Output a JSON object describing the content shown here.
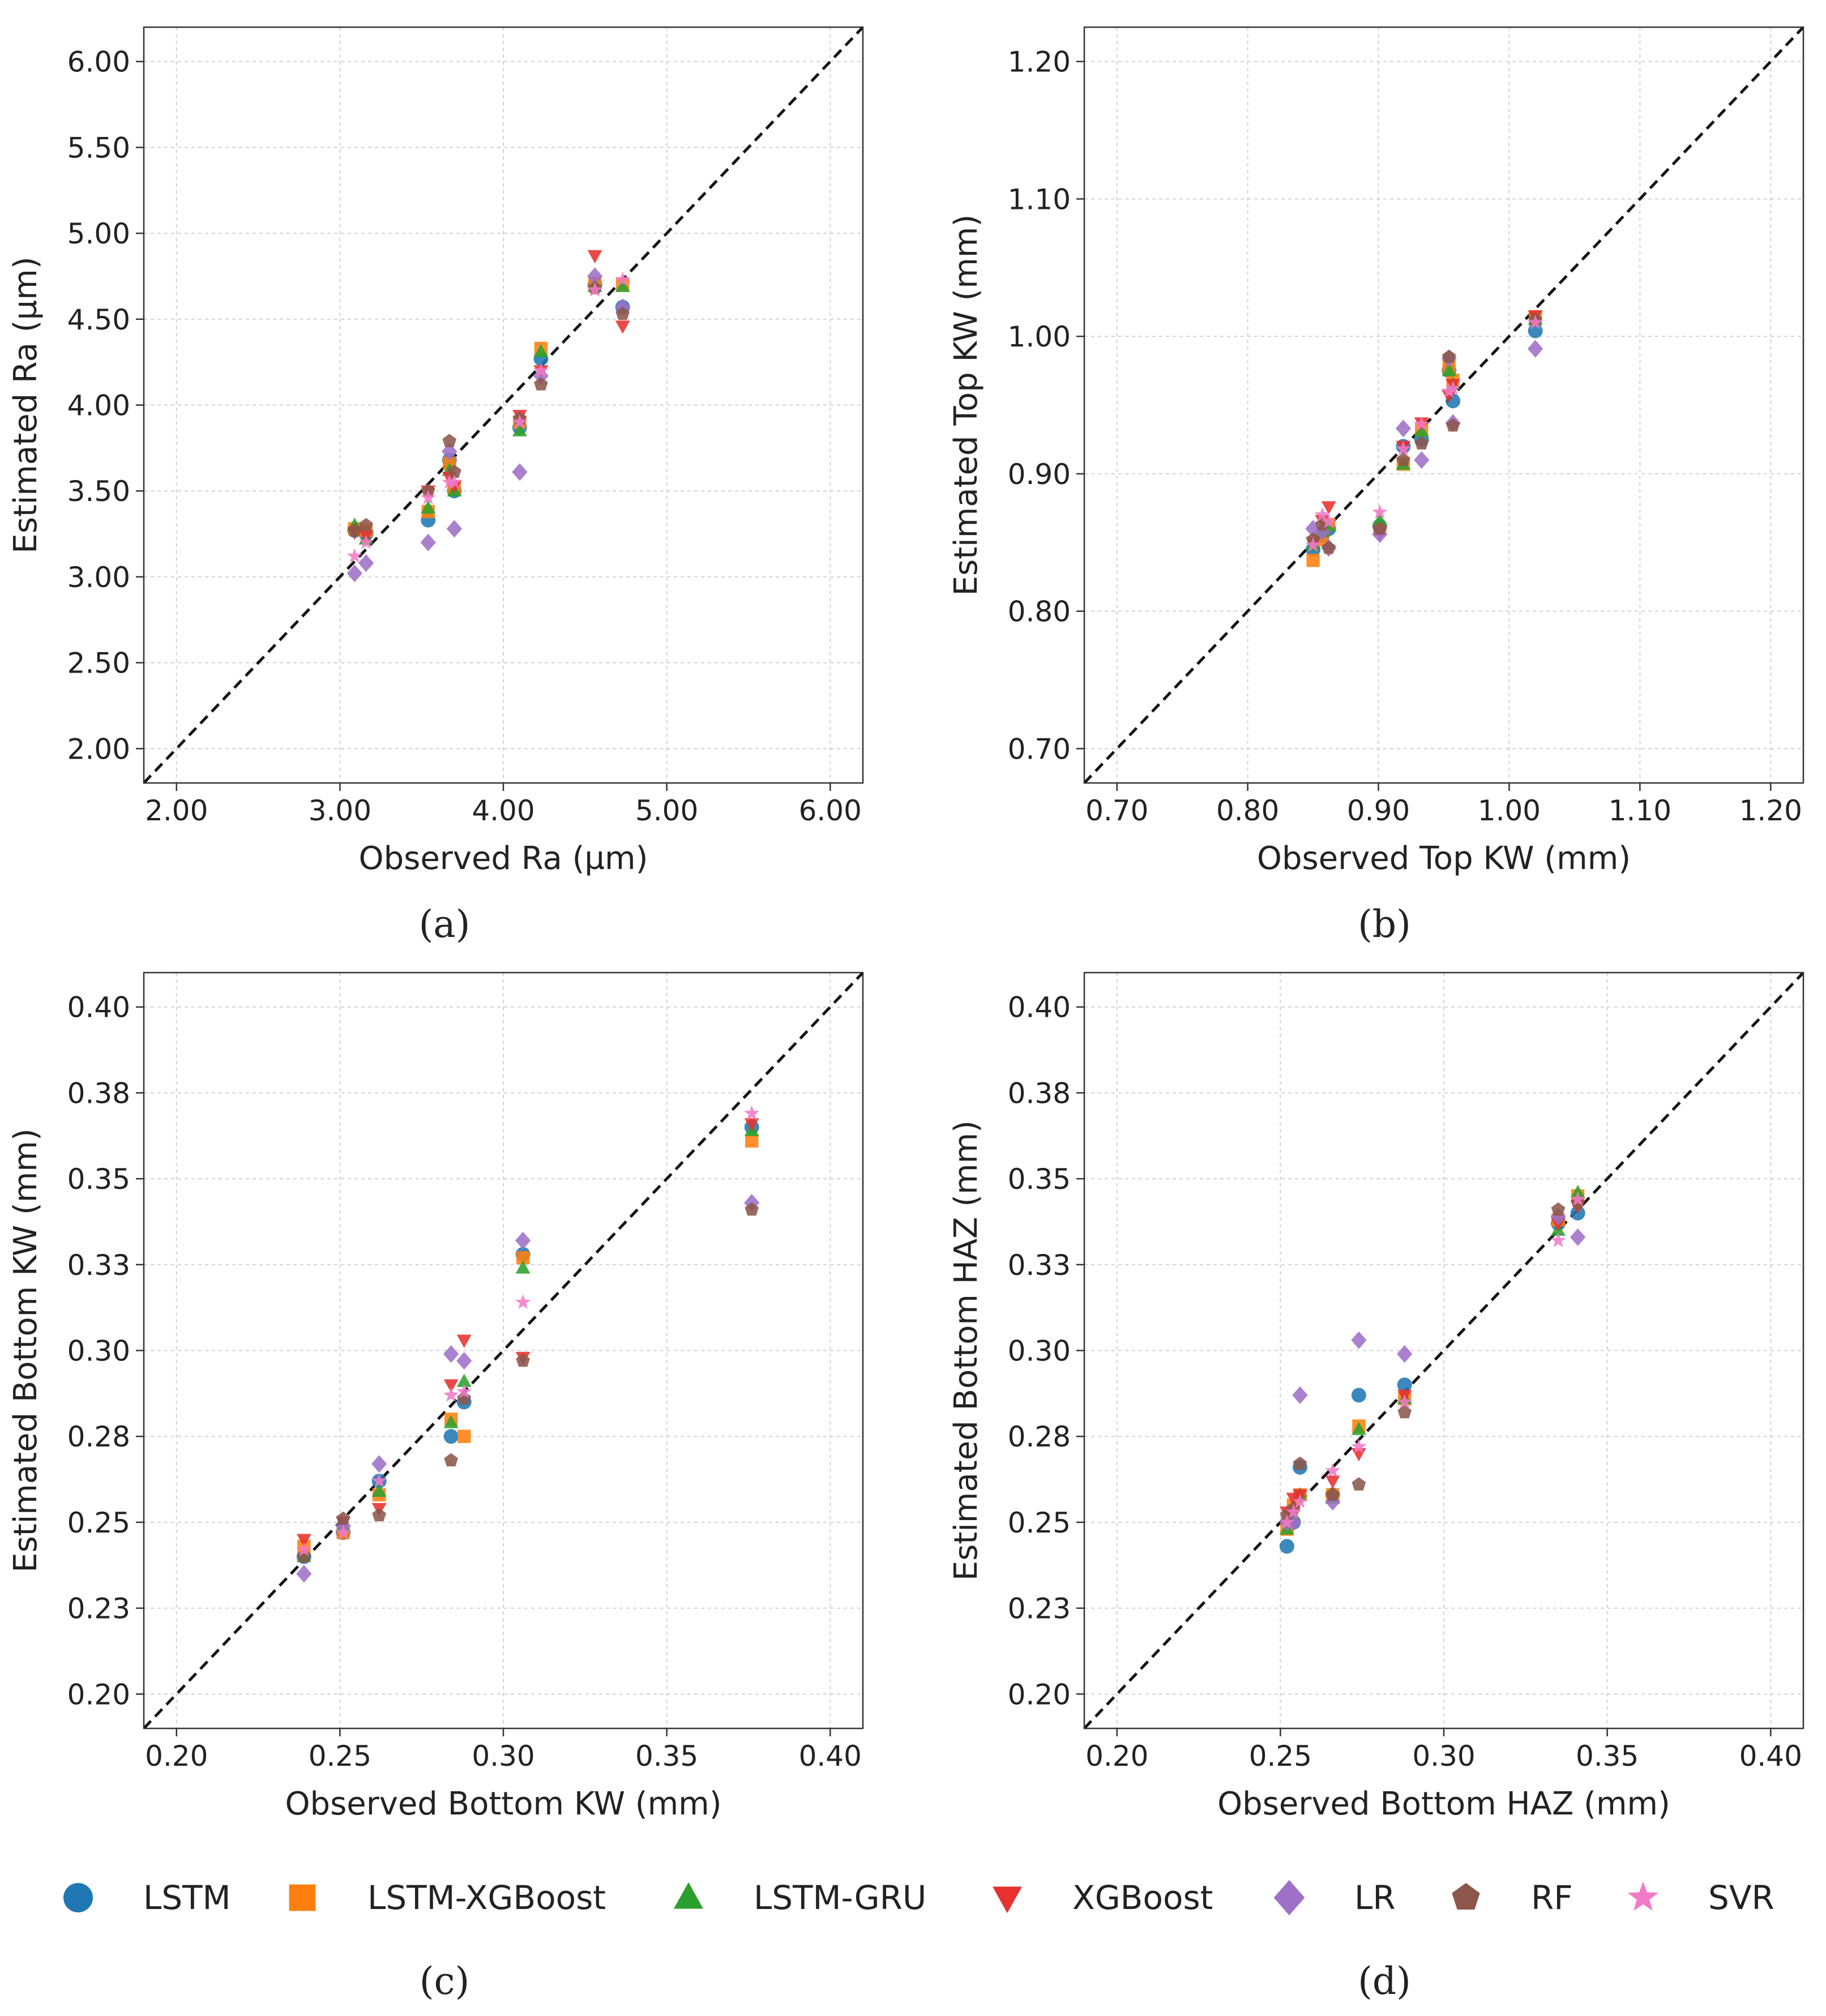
{
  "series_styles": [
    {
      "name": "LSTM",
      "marker": "circle",
      "color": "#1f77b4"
    },
    {
      "name": "LSTM-XGBoost",
      "marker": "square",
      "color": "#ff7f0e"
    },
    {
      "name": "LSTM-GRU",
      "marker": "triangle-up",
      "color": "#2ca02c"
    },
    {
      "name": "XGBoost",
      "marker": "triangle-down",
      "color": "#e8302e"
    },
    {
      "name": "LR",
      "marker": "diamond",
      "color": "#9e70c8"
    },
    {
      "name": "RF",
      "marker": "pentagon",
      "color": "#8c564b"
    },
    {
      "name": "SVR",
      "marker": "star",
      "color": "#f27ac8"
    }
  ],
  "legend": {
    "labels": [
      "LSTM",
      "LSTM-XGBoost",
      "LSTM-GRU",
      "XGBoost",
      "LR",
      "RF",
      "SVR"
    ]
  },
  "chart_data": [
    {
      "type": "scatter",
      "panel": "a",
      "caption": "(a)",
      "xlabel": "Observed Ra (µm)",
      "ylabel": "Estimated Ra (µm)",
      "xlim": [
        1.8,
        6.2
      ],
      "ylim": [
        1.8,
        6.2
      ],
      "xticks": [
        2.0,
        3.0,
        4.0,
        5.0,
        6.0
      ],
      "xtick_labels": [
        "2.00",
        "3.00",
        "4.00",
        "5.00",
        "6.00"
      ],
      "yticks": [
        2.0,
        2.5,
        3.0,
        3.5,
        4.0,
        4.5,
        5.0,
        5.5,
        6.0
      ],
      "ytick_labels": [
        "2.00",
        "2.50",
        "3.00",
        "3.50",
        "4.00",
        "4.50",
        "5.00",
        "5.50",
        "6.00"
      ],
      "identity_line": true,
      "grid": true,
      "x": [
        3.09,
        3.16,
        3.54,
        3.67,
        3.7,
        4.1,
        4.23,
        4.56,
        4.73
      ],
      "series": [
        {
          "name": "LSTM",
          "values": [
            3.27,
            3.25,
            3.33,
            3.68,
            3.5,
            3.87,
            4.27,
            4.7,
            4.57
          ]
        },
        {
          "name": "LSTM-XGBoost",
          "values": [
            3.28,
            3.27,
            3.38,
            3.66,
            3.52,
            3.9,
            4.33,
            4.71,
            4.7
          ]
        },
        {
          "name": "LSTM-GRU",
          "values": [
            3.3,
            3.22,
            3.4,
            3.62,
            3.5,
            3.85,
            4.31,
            4.69,
            4.69
          ]
        },
        {
          "name": "XGBoost",
          "values": [
            3.26,
            3.24,
            3.5,
            3.58,
            3.53,
            3.94,
            4.2,
            4.87,
            4.46
          ]
        },
        {
          "name": "LR",
          "values": [
            3.02,
            3.08,
            3.2,
            3.73,
            3.28,
            3.61,
            4.17,
            4.75,
            4.57
          ]
        },
        {
          "name": "RF",
          "values": [
            3.27,
            3.3,
            3.5,
            3.79,
            3.61,
            3.92,
            4.12,
            4.68,
            4.53
          ]
        },
        {
          "name": "SVR",
          "values": [
            3.12,
            3.2,
            3.46,
            3.55,
            3.55,
            3.9,
            4.2,
            4.67,
            4.73
          ]
        }
      ]
    },
    {
      "type": "scatter",
      "panel": "b",
      "caption": "(b)",
      "xlabel": "Observed Top KW (mm)",
      "ylabel": "Estimated Top KW (mm)",
      "xlim": [
        0.675,
        1.225
      ],
      "ylim": [
        0.675,
        1.225
      ],
      "xticks": [
        0.7,
        0.8,
        0.9,
        1.0,
        1.1,
        1.2
      ],
      "xtick_labels": [
        "0.70",
        "0.80",
        "0.90",
        "1.00",
        "1.10",
        "1.20"
      ],
      "yticks": [
        0.7,
        0.8,
        0.9,
        1.0,
        1.1,
        1.2
      ],
      "ytick_labels": [
        "0.70",
        "0.80",
        "0.90",
        "1.00",
        "1.10",
        "1.20"
      ],
      "identity_line": true,
      "grid": true,
      "x": [
        0.85,
        0.857,
        0.862,
        0.901,
        0.919,
        0.933,
        0.954,
        0.957,
        1.02
      ],
      "series": [
        {
          "name": "LSTM",
          "values": [
            0.845,
            0.855,
            0.86,
            0.862,
            0.92,
            0.925,
            0.975,
            0.953,
            1.004
          ]
        },
        {
          "name": "LSTM-XGBoost",
          "values": [
            0.837,
            0.852,
            0.863,
            0.86,
            0.907,
            0.932,
            0.978,
            0.968,
            1.014
          ]
        },
        {
          "name": "LSTM-GRU",
          "values": [
            0.848,
            0.858,
            0.862,
            0.866,
            0.907,
            0.931,
            0.975,
            0.965,
            1.012
          ]
        },
        {
          "name": "XGBoost",
          "values": [
            0.85,
            0.866,
            0.876,
            0.857,
            0.92,
            0.937,
            0.957,
            0.965,
            1.015
          ]
        },
        {
          "name": "LR",
          "values": [
            0.86,
            0.858,
            0.846,
            0.856,
            0.933,
            0.91,
            0.984,
            0.937,
            0.991
          ]
        },
        {
          "name": "RF",
          "values": [
            0.852,
            0.863,
            0.846,
            0.86,
            0.91,
            0.922,
            0.985,
            0.935,
            1.012
          ]
        },
        {
          "name": "SVR",
          "values": [
            0.848,
            0.87,
            0.865,
            0.872,
            0.918,
            0.936,
            0.96,
            0.962,
            1.01
          ]
        }
      ]
    },
    {
      "type": "scatter",
      "panel": "c",
      "caption": "(c)",
      "xlabel": "Observed Bottom KW (mm)",
      "ylabel": "Estimated Bottom KW (mm)",
      "xlim": [
        0.19,
        0.41
      ],
      "ylim": [
        0.19,
        0.41
      ],
      "xticks": [
        0.2,
        0.25,
        0.3,
        0.35,
        0.4
      ],
      "xtick_labels": [
        "0.20",
        "0.25",
        "0.30",
        "0.35",
        "0.40"
      ],
      "yticks": [
        0.2,
        0.225,
        0.25,
        0.275,
        0.3,
        0.325,
        0.35,
        0.375,
        0.4
      ],
      "ytick_labels": [
        "0.20",
        "0.23",
        "0.25",
        "0.28",
        "0.30",
        "0.33",
        "0.35",
        "0.38",
        "0.40"
      ],
      "identity_line": true,
      "grid": true,
      "x": [
        0.239,
        0.251,
        0.262,
        0.284,
        0.288,
        0.306,
        0.376
      ],
      "series": [
        {
          "name": "LSTM",
          "values": [
            0.24,
            0.247,
            0.262,
            0.275,
            0.285,
            0.328,
            0.365
          ]
        },
        {
          "name": "LSTM-XGBoost",
          "values": [
            0.243,
            0.247,
            0.258,
            0.28,
            0.275,
            0.327,
            0.361
          ]
        },
        {
          "name": "LSTM-GRU",
          "values": [
            0.24,
            0.249,
            0.259,
            0.279,
            0.291,
            0.324,
            0.364
          ]
        },
        {
          "name": "XGBoost",
          "values": [
            0.245,
            0.25,
            0.254,
            0.29,
            0.303,
            0.298,
            0.366
          ]
        },
        {
          "name": "LR",
          "values": [
            0.235,
            0.249,
            0.267,
            0.299,
            0.297,
            0.332,
            0.343
          ]
        },
        {
          "name": "RF",
          "values": [
            0.24,
            0.251,
            0.252,
            0.268,
            0.286,
            0.297,
            0.341
          ]
        },
        {
          "name": "SVR",
          "values": [
            0.242,
            0.247,
            0.262,
            0.287,
            0.288,
            0.314,
            0.369
          ]
        }
      ]
    },
    {
      "type": "scatter",
      "panel": "d",
      "caption": "(d)",
      "xlabel": "Observed Bottom HAZ (mm)",
      "ylabel": "Estimated Bottom HAZ (mm)",
      "xlim": [
        0.19,
        0.41
      ],
      "ylim": [
        0.19,
        0.41
      ],
      "xticks": [
        0.2,
        0.25,
        0.3,
        0.35,
        0.4
      ],
      "xtick_labels": [
        "0.20",
        "0.25",
        "0.30",
        "0.35",
        "0.40"
      ],
      "yticks": [
        0.2,
        0.225,
        0.25,
        0.275,
        0.3,
        0.325,
        0.35,
        0.375,
        0.4
      ],
      "ytick_labels": [
        "0.20",
        "0.23",
        "0.25",
        "0.28",
        "0.30",
        "0.33",
        "0.35",
        "0.38",
        "0.40"
      ],
      "identity_line": true,
      "grid": true,
      "x": [
        0.252,
        0.254,
        0.256,
        0.266,
        0.274,
        0.288,
        0.335,
        0.341
      ],
      "series": [
        {
          "name": "LSTM",
          "values": [
            0.243,
            0.25,
            0.266,
            0.258,
            0.287,
            0.29,
            0.337,
            0.34
          ]
        },
        {
          "name": "LSTM-XGBoost",
          "values": [
            0.248,
            0.255,
            0.258,
            0.258,
            0.278,
            0.286,
            0.338,
            0.345
          ]
        },
        {
          "name": "LSTM-GRU",
          "values": [
            0.248,
            0.252,
            0.258,
            0.257,
            0.277,
            0.286,
            0.335,
            0.346
          ]
        },
        {
          "name": "XGBoost",
          "values": [
            0.253,
            0.257,
            0.258,
            0.262,
            0.27,
            0.287,
            0.337,
            0.342
          ]
        },
        {
          "name": "LR",
          "values": [
            0.25,
            0.25,
            0.287,
            0.256,
            0.303,
            0.299,
            0.339,
            0.333
          ]
        },
        {
          "name": "RF",
          "values": [
            0.252,
            0.254,
            0.267,
            0.258,
            0.261,
            0.282,
            0.341,
            0.343
          ]
        },
        {
          "name": "SVR",
          "values": [
            0.25,
            0.253,
            0.256,
            0.265,
            0.272,
            0.285,
            0.332,
            0.344
          ]
        }
      ]
    }
  ]
}
